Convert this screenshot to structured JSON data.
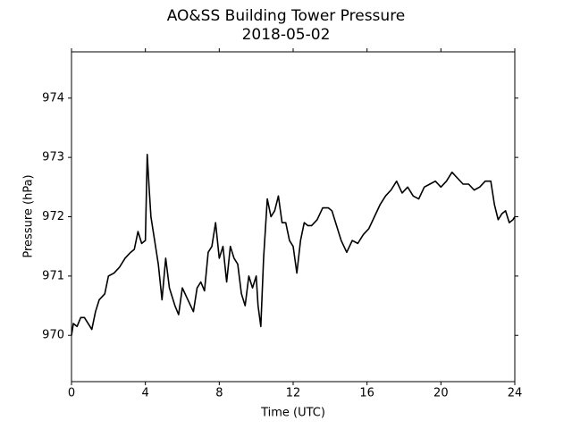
{
  "chart_data": {
    "type": "line",
    "title": "AO&SS Building Tower Pressure",
    "subtitle": "2018-05-02",
    "xlabel": "Time (UTC)",
    "ylabel": "Pressure (hPa)",
    "color": "#000000",
    "x": [
      0,
      0.1,
      0.3,
      0.5,
      0.7,
      0.9,
      1.1,
      1.3,
      1.5,
      1.8,
      2.0,
      2.3,
      2.6,
      2.9,
      3.2,
      3.4,
      3.6,
      3.8,
      4.0,
      4.1,
      4.2,
      4.3,
      4.5,
      4.7,
      4.9,
      5.1,
      5.3,
      5.6,
      5.8,
      6.0,
      6.3,
      6.6,
      6.8,
      7.0,
      7.2,
      7.4,
      7.6,
      7.8,
      8.0,
      8.2,
      8.4,
      8.6,
      8.8,
      9.0,
      9.2,
      9.4,
      9.6,
      9.8,
      10.0,
      10.1,
      10.25,
      10.4,
      10.6,
      10.8,
      11.0,
      11.2,
      11.4,
      11.6,
      11.8,
      12.0,
      12.2,
      12.4,
      12.6,
      12.8,
      13.0,
      13.3,
      13.6,
      13.9,
      14.1,
      14.3,
      14.6,
      14.9,
      15.2,
      15.5,
      15.8,
      16.1,
      16.4,
      16.7,
      17.0,
      17.3,
      17.6,
      17.9,
      18.2,
      18.5,
      18.8,
      19.1,
      19.4,
      19.7,
      20.0,
      20.3,
      20.6,
      20.9,
      21.2,
      21.5,
      21.8,
      22.1,
      22.4,
      22.7,
      22.9,
      23.1,
      23.3,
      23.5,
      23.7,
      23.9,
      24.0
    ],
    "values": [
      970.0,
      970.2,
      970.15,
      970.3,
      970.3,
      970.2,
      970.1,
      970.4,
      970.6,
      970.7,
      971.0,
      971.05,
      971.15,
      971.3,
      971.4,
      971.45,
      971.75,
      971.55,
      971.6,
      973.05,
      972.5,
      972.0,
      971.6,
      971.2,
      970.6,
      971.3,
      970.8,
      970.5,
      970.35,
      970.8,
      970.6,
      970.4,
      970.8,
      970.9,
      970.75,
      971.4,
      971.5,
      971.9,
      971.3,
      971.5,
      970.9,
      971.5,
      971.3,
      971.2,
      970.7,
      970.5,
      971.0,
      970.8,
      971.0,
      970.5,
      970.15,
      971.3,
      972.3,
      972.0,
      972.1,
      972.35,
      971.9,
      971.9,
      971.6,
      971.5,
      971.05,
      971.6,
      971.9,
      971.85,
      971.85,
      971.95,
      972.15,
      972.15,
      972.1,
      971.9,
      971.6,
      971.4,
      971.6,
      971.55,
      971.7,
      971.8,
      972.0,
      972.2,
      972.35,
      972.45,
      972.6,
      972.4,
      972.5,
      972.35,
      972.3,
      972.5,
      972.55,
      972.6,
      972.5,
      972.6,
      972.75,
      972.65,
      972.55,
      972.55,
      972.45,
      972.5,
      972.6,
      972.6,
      972.2,
      971.95,
      972.05,
      972.1,
      971.9,
      971.95,
      972.0
    ],
    "xlim": [
      0,
      24
    ],
    "xticks": [
      0,
      4,
      8,
      12,
      16,
      20,
      24
    ],
    "ylim": [
      969.22,
      974.78
    ],
    "yticks": [
      970,
      971,
      972,
      973,
      974
    ]
  }
}
